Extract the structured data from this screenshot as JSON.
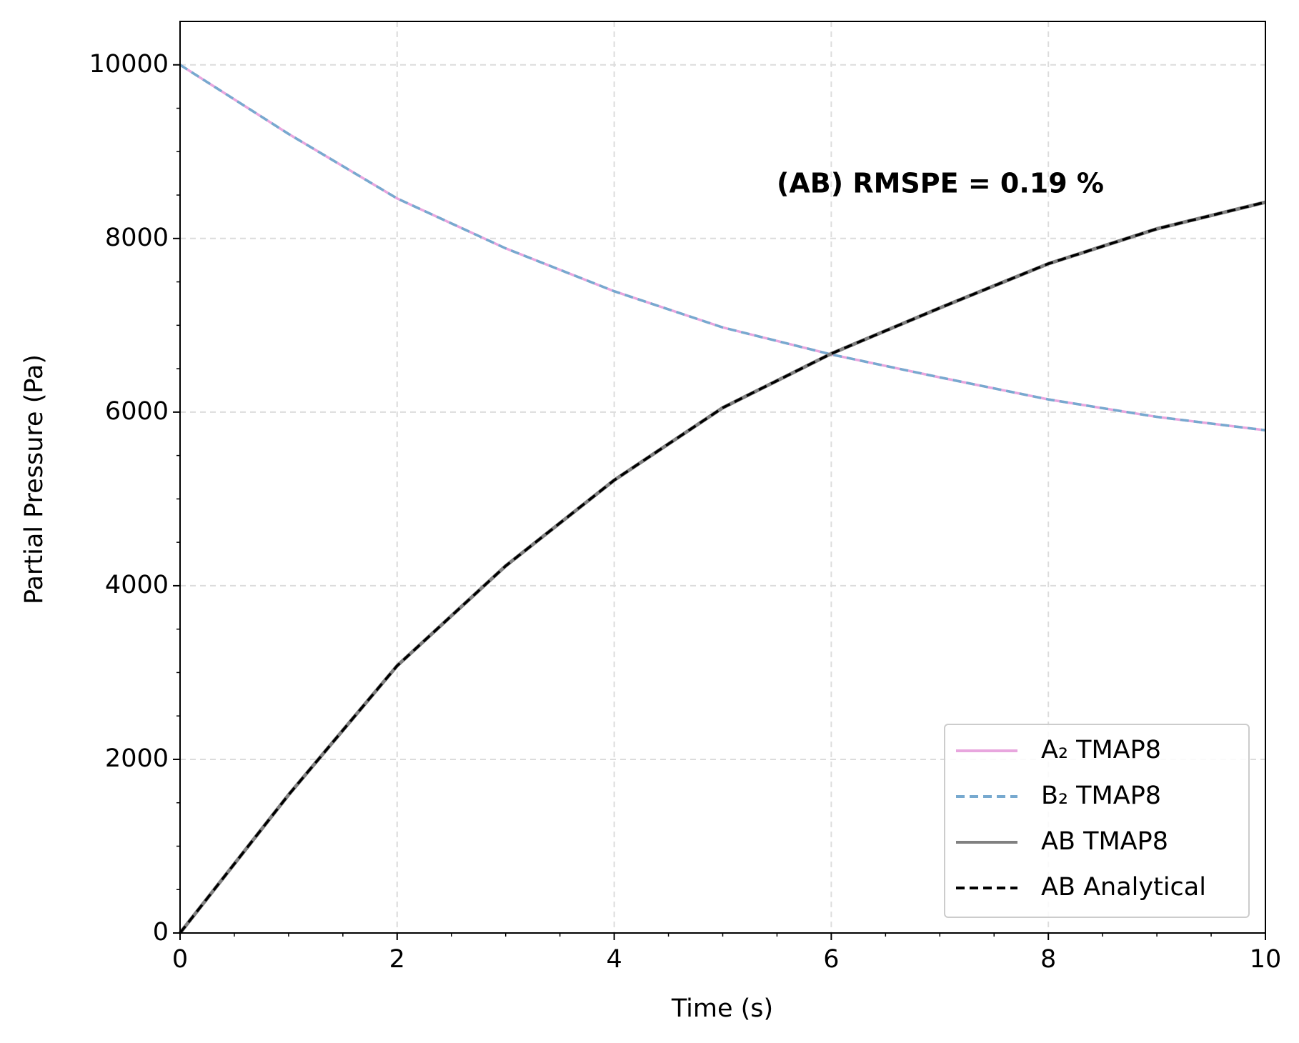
{
  "chart_data": {
    "type": "line",
    "xlabel": "Time (s)",
    "ylabel": "Partial Pressure (Pa)",
    "annotation": "(AB) RMSPE = 0.19 %",
    "x": [
      0,
      1,
      2,
      3,
      4,
      5,
      6,
      7,
      8,
      9,
      10
    ],
    "series": [
      {
        "name": "A₂ TMAP8",
        "color": "#e8a6de",
        "dash": false,
        "values": [
          10000,
          9204,
          8461,
          7886,
          7392,
          6975,
          6664,
          6400,
          6146,
          5945,
          5791
        ]
      },
      {
        "name": "B₂ TMAP8",
        "color": "#77a9cf",
        "dash": true,
        "values": [
          10000,
          9204,
          8461,
          7886,
          7392,
          6975,
          6664,
          6400,
          6146,
          5945,
          5791
        ]
      },
      {
        "name": "AB TMAP8",
        "color": "#808080",
        "dash": false,
        "values": [
          0,
          1592,
          3078,
          4228,
          5216,
          6050,
          6673,
          7200,
          7709,
          8111,
          8418
        ]
      },
      {
        "name": "AB Analytical",
        "color": "#000000",
        "dash": true,
        "values": [
          0,
          1592,
          3078,
          4228,
          5216,
          6050,
          6673,
          7200,
          7709,
          8111,
          8418
        ]
      }
    ],
    "xlim": [
      0,
      10
    ],
    "ylim": [
      0,
      10500
    ],
    "xticks": [
      0,
      2,
      4,
      6,
      8,
      10
    ],
    "yticks": [
      0,
      2000,
      4000,
      6000,
      8000,
      10000
    ],
    "grid": true,
    "legend": "lower right"
  }
}
